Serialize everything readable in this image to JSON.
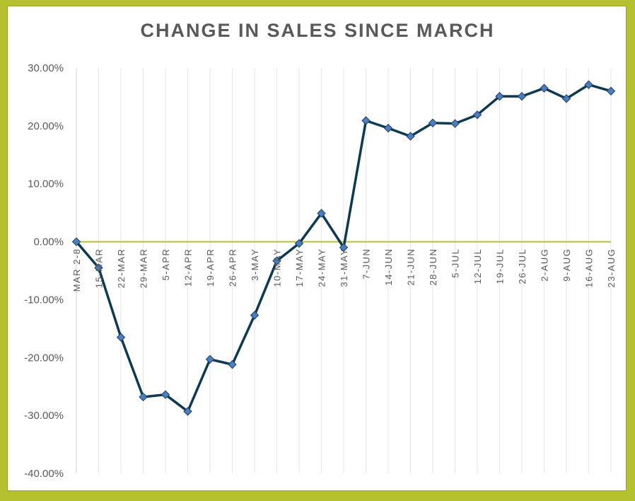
{
  "chart_data": {
    "type": "line",
    "title": "CHANGE IN SALES SINCE MARCH",
    "xlabel": "",
    "ylabel": "",
    "categories": [
      "MAR 2-8",
      "15-MAR",
      "22-MAR",
      "29-MAR",
      "5-APR",
      "12-APR",
      "19-APR",
      "26-APR",
      "3-MAY",
      "10-MAY",
      "17-MAY",
      "24-MAY",
      "31-MAY",
      "7-JUN",
      "14-JUN",
      "21-JUN",
      "28-JUN",
      "5-JUL",
      "12-JUL",
      "19-JUL",
      "26-JUL",
      "2-AUG",
      "9-AUG",
      "16-AUG",
      "23-AUG"
    ],
    "series": [
      {
        "values": [
          0.0,
          -4.5,
          -16.5,
          -26.8,
          -26.4,
          -29.3,
          -20.3,
          -21.2,
          -12.7,
          -3.3,
          -0.3,
          4.9,
          -1.0,
          20.9,
          19.6,
          18.2,
          20.5,
          20.4,
          21.9,
          25.1,
          25.1,
          26.5,
          24.7,
          27.1,
          26.0
        ]
      }
    ],
    "ylim": [
      -40,
      30
    ],
    "yticks": [
      30,
      20,
      10,
      0,
      -10,
      -20,
      -30,
      -40
    ],
    "ytick_labels": [
      "30.00%",
      "20.00%",
      "10.00%",
      "0.00%",
      "-10.00%",
      "-20.00%",
      "-30.00%",
      "-40.00%"
    ],
    "grid": "vertical",
    "legend": "none",
    "colors": {
      "line": "#0d3a52",
      "marker": "#4a7ec0",
      "marker_stroke": "#1f3f66",
      "zero_line": "#b5c12f",
      "grid": "#e6e6e6",
      "border": "#b5c12f"
    }
  }
}
